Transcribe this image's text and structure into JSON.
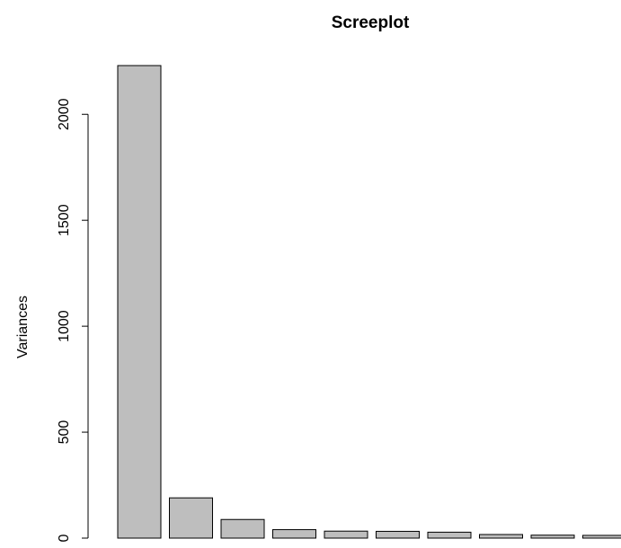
{
  "chart_data": {
    "type": "bar",
    "title": "Screeplot",
    "xlabel": "",
    "ylabel": "Variances",
    "ylim": [
      0,
      2230
    ],
    "yticks": [
      0,
      500,
      1000,
      1500,
      2000
    ],
    "values": [
      2230,
      190,
      88,
      40,
      33,
      32,
      28,
      17,
      14,
      13
    ],
    "bar_color": "#bebebe",
    "bar_border": "#000000",
    "background": "#ffffff"
  }
}
